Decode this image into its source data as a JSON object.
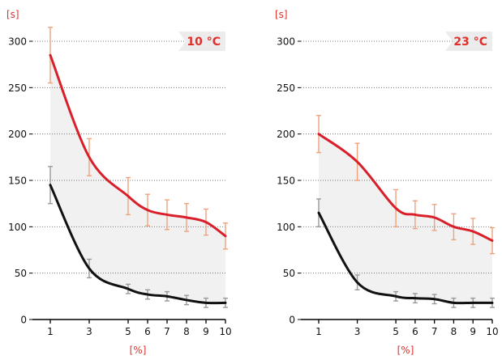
{
  "colors": {
    "band": "#f1f1f1",
    "series_upper": "#d9202a",
    "series_lower": "#111111",
    "error_upper": "#f0a27f",
    "error_lower": "#9a9a9a",
    "accent_text": "#e0302b",
    "badge_bg": "#ececec",
    "grid": "#777777",
    "axis": "#000000"
  },
  "chart_data": [
    {
      "type": "line",
      "title": "10 °C",
      "xlabel": "[%]",
      "ylabel": "[s]",
      "xlim": [
        1,
        10
      ],
      "ylim": [
        0,
        300
      ],
      "xticks": [
        1,
        3,
        5,
        6,
        7,
        8,
        9,
        10
      ],
      "yticks": [
        0,
        50,
        100,
        150,
        200,
        250,
        300
      ],
      "grid": "horizontal dotted",
      "shaded_between_series": true,
      "series": [
        {
          "role": "upper",
          "x": [
            1,
            3,
            5,
            6,
            7,
            8,
            9,
            10
          ],
          "y": [
            285,
            175,
            133,
            118,
            113,
            110,
            105,
            90
          ],
          "err": [
            30,
            20,
            20,
            17,
            16,
            15,
            14,
            14
          ]
        },
        {
          "role": "lower",
          "x": [
            1,
            3,
            5,
            6,
            7,
            8,
            9,
            10
          ],
          "y": [
            145,
            55,
            33,
            27,
            25,
            21,
            18,
            18
          ],
          "err": [
            20,
            10,
            5,
            5,
            5,
            5,
            5,
            5
          ]
        }
      ]
    },
    {
      "type": "line",
      "title": "23 °C",
      "xlabel": "[%]",
      "ylabel": "[s]",
      "xlim": [
        1,
        10
      ],
      "ylim": [
        0,
        300
      ],
      "xticks": [
        1,
        3,
        5,
        6,
        7,
        8,
        9,
        10
      ],
      "yticks": [
        0,
        50,
        100,
        150,
        200,
        250,
        300
      ],
      "grid": "horizontal dotted",
      "shaded_between_series": true,
      "series": [
        {
          "role": "upper",
          "x": [
            1,
            3,
            5,
            6,
            7,
            8,
            9,
            10
          ],
          "y": [
            200,
            170,
            120,
            113,
            110,
            100,
            95,
            85
          ],
          "err": [
            20,
            20,
            20,
            15,
            14,
            14,
            14,
            14
          ]
        },
        {
          "role": "lower",
          "x": [
            1,
            3,
            5,
            6,
            7,
            8,
            9,
            10
          ],
          "y": [
            115,
            40,
            25,
            23,
            22,
            18,
            18,
            18
          ],
          "err": [
            15,
            8,
            5,
            5,
            5,
            5,
            5,
            5
          ]
        }
      ]
    }
  ]
}
